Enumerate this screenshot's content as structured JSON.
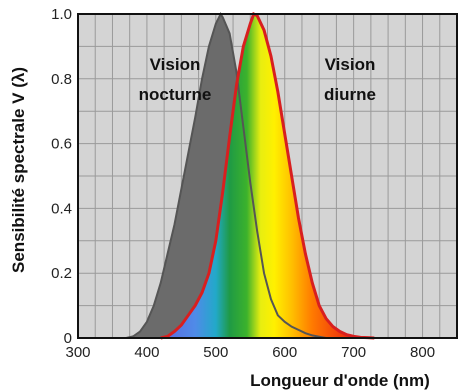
{
  "chart_data": {
    "type": "area",
    "title": "",
    "xlabel": "Longueur d'onde (nm)",
    "ylabel": "Sensibilité spectrale V (λ)",
    "xlim": [
      300,
      850
    ],
    "ylim": [
      0,
      1.0
    ],
    "x_ticks": [
      "300",
      "400",
      "500",
      "600",
      "700",
      "800"
    ],
    "y_ticks": [
      "0",
      "0.2",
      "0.4",
      "0.6",
      "0.8",
      "1.0"
    ],
    "grid": true,
    "annotations": [
      {
        "text_lines": [
          "Vision",
          "nocturne"
        ],
        "series": "scotopic"
      },
      {
        "text_lines": [
          "Vision",
          "diurne"
        ],
        "series": "photopic"
      }
    ],
    "series": [
      {
        "id": "scotopic",
        "color": "#6b6b6b",
        "x": [
          370,
          380,
          390,
          400,
          410,
          420,
          430,
          440,
          450,
          460,
          470,
          480,
          490,
          500,
          507,
          510,
          520,
          530,
          540,
          550,
          560,
          570,
          580,
          590,
          600,
          610,
          620,
          630,
          640,
          650,
          660
        ],
        "y": [
          0.0,
          0.005,
          0.02,
          0.05,
          0.1,
          0.17,
          0.26,
          0.35,
          0.46,
          0.57,
          0.68,
          0.8,
          0.9,
          0.97,
          1.0,
          0.99,
          0.94,
          0.82,
          0.65,
          0.48,
          0.33,
          0.2,
          0.12,
          0.07,
          0.05,
          0.035,
          0.025,
          0.015,
          0.008,
          0.004,
          0.0
        ]
      },
      {
        "id": "photopic",
        "color": "#d81f1f",
        "x": [
          420,
          430,
          440,
          450,
          460,
          470,
          480,
          490,
          500,
          510,
          520,
          530,
          540,
          550,
          555,
          560,
          570,
          580,
          590,
          600,
          610,
          620,
          630,
          640,
          650,
          660,
          670,
          680,
          690,
          700,
          710,
          720,
          730
        ],
        "y": [
          0.0,
          0.005,
          0.02,
          0.04,
          0.07,
          0.1,
          0.14,
          0.2,
          0.3,
          0.45,
          0.62,
          0.78,
          0.9,
          0.97,
          1.0,
          0.995,
          0.95,
          0.87,
          0.76,
          0.63,
          0.5,
          0.37,
          0.26,
          0.17,
          0.1,
          0.06,
          0.035,
          0.02,
          0.01,
          0.005,
          0.002,
          0.001,
          0.0
        ]
      }
    ],
    "spectrum_stops": [
      {
        "nm": 430,
        "color": "#5a6fe0"
      },
      {
        "nm": 470,
        "color": "#4f8be8"
      },
      {
        "nm": 500,
        "color": "#22a9c9"
      },
      {
        "nm": 520,
        "color": "#1f9a45"
      },
      {
        "nm": 545,
        "color": "#3cb22c"
      },
      {
        "nm": 565,
        "color": "#e8ee10"
      },
      {
        "nm": 585,
        "color": "#fff000"
      },
      {
        "nm": 610,
        "color": "#ffc000"
      },
      {
        "nm": 640,
        "color": "#ff7a00"
      },
      {
        "nm": 700,
        "color": "#e82010"
      }
    ],
    "plot_background": "#d4d4d4",
    "grid_color": "#9a9a9a"
  }
}
